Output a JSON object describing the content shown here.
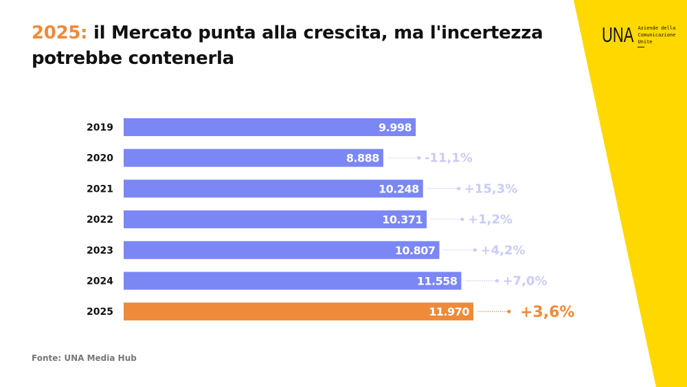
{
  "title": {
    "highlight": "2025:",
    "text": " il Mercato punta alla crescita, ma l'incertezza potrebbe contenerla"
  },
  "logo": {
    "mark": "UNA",
    "line1": "Aziende della",
    "line2": "Comunicazione",
    "line3": "Unite"
  },
  "source": "Fonte: UNA Media Hub",
  "colors": {
    "bar": "#7B87F5",
    "highlight": "#EE8A3A",
    "change": "#C9CCF5",
    "yellow": "#FFD800"
  },
  "chart_data": {
    "type": "bar",
    "orientation": "horizontal",
    "categories": [
      "2019",
      "2020",
      "2021",
      "2022",
      "2023",
      "2024",
      "2025"
    ],
    "values": [
      9998,
      8888,
      10248,
      10371,
      10807,
      11558,
      11970
    ],
    "value_labels": [
      "9.998",
      "8.888",
      "10.248",
      "10.371",
      "10.807",
      "11.558",
      "11.970"
    ],
    "changes": [
      "",
      "-11,1%",
      "+15,3%",
      "+1,2%",
      "+4,2%",
      "+7,0%",
      "+3,6%"
    ],
    "highlighted_category": "2025",
    "xlim": [
      0,
      12000
    ],
    "grid": false,
    "title": "",
    "xlabel": "",
    "ylabel": ""
  }
}
